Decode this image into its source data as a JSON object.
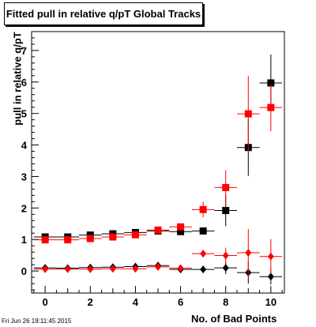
{
  "title": "Fitted pull in relative q/pT  Global Tracks",
  "timestamp": "Fri Jun 26 19:11:45 2015",
  "chart_data": {
    "type": "scatter",
    "title": "Fitted pull in relative q/pT  Global Tracks",
    "xlabel": "No. of Bad Points",
    "ylabel": "pull in relative q/pT",
    "xlim": [
      -0.6,
      10.6
    ],
    "ylim": [
      -0.7,
      7.6
    ],
    "x_ticks": [
      0,
      2,
      4,
      6,
      8,
      10
    ],
    "y_ticks": [
      0,
      1,
      2,
      3,
      4,
      5,
      6,
      7
    ],
    "grid": false,
    "series": [
      {
        "color": "#000000",
        "marker": "square",
        "x": [
          0,
          1,
          2,
          3,
          4,
          5,
          6,
          7,
          8,
          9,
          10
        ],
        "y": [
          1.08,
          1.08,
          1.14,
          1.18,
          1.22,
          1.27,
          1.25,
          1.27,
          1.92,
          3.92,
          5.97
        ],
        "yerr": [
          0.05,
          0.05,
          0.05,
          0.06,
          0.06,
          0.07,
          0.08,
          0.08,
          0.5,
          0.9,
          0.9
        ]
      },
      {
        "color": "#ff0000",
        "marker": "square",
        "x": [
          0,
          1,
          2,
          3,
          4,
          5,
          6,
          7,
          8,
          9,
          10
        ],
        "y": [
          0.99,
          0.99,
          1.03,
          1.08,
          1.15,
          1.3,
          1.4,
          1.95,
          2.65,
          4.99,
          5.19
        ],
        "yerr": [
          0.05,
          0.05,
          0.05,
          0.05,
          0.06,
          0.07,
          0.1,
          0.25,
          0.55,
          1.2,
          0.75
        ]
      },
      {
        "color": "#000000",
        "marker": "diamond",
        "x": [
          0,
          1,
          2,
          3,
          4,
          5,
          6,
          7,
          8,
          9,
          10
        ],
        "y": [
          0.1,
          0.09,
          0.11,
          0.12,
          0.14,
          0.17,
          0.05,
          0.05,
          0.1,
          -0.05,
          -0.18
        ],
        "yerr": [
          0.04,
          0.04,
          0.04,
          0.04,
          0.05,
          0.06,
          0.06,
          0.08,
          0.2,
          0.35,
          0.25
        ]
      },
      {
        "color": "#ff0000",
        "marker": "diamond",
        "x": [
          0,
          1,
          2,
          3,
          4,
          5,
          6,
          7,
          8,
          9,
          10
        ],
        "y": [
          0.06,
          0.06,
          0.06,
          0.07,
          0.07,
          0.13,
          0.09,
          0.55,
          0.49,
          0.58,
          0.46
        ],
        "yerr": [
          0.03,
          0.03,
          0.03,
          0.03,
          0.04,
          0.05,
          0.07,
          0.1,
          0.25,
          0.75,
          0.55
        ]
      }
    ]
  }
}
